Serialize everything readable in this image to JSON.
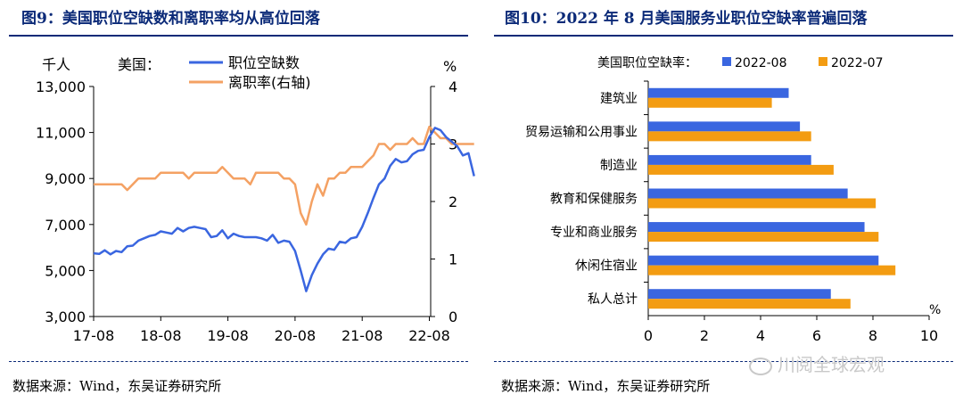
{
  "left": {
    "title": "图9：美国职位空缺数和离职率均从高位回落",
    "source": "数据来源：Wind，东吴证券研究所",
    "colors": {
      "openings": "#3a66e0",
      "quit_rate": "#f4a163"
    },
    "chart_data": {
      "type": "line",
      "title": "美国：",
      "y_unit_left": "千人",
      "y_unit_right": "%",
      "ylim_left": [
        3000,
        13000
      ],
      "ylim_right": [
        0,
        4
      ],
      "yticks_left": [
        "3,000",
        "5,000",
        "7,000",
        "9,000",
        "11,000",
        "13,000"
      ],
      "yticks_right": [
        "0",
        "1",
        "2",
        "3",
        "4"
      ],
      "xticks": [
        "17-08",
        "18-08",
        "19-08",
        "20-08",
        "21-08",
        "22-08"
      ],
      "series": [
        {
          "name": "职位空缺数",
          "axis": "left",
          "start": "2017-08",
          "values": [
            5750,
            5720,
            5880,
            5700,
            5850,
            5800,
            6050,
            6080,
            6300,
            6400,
            6500,
            6550,
            6700,
            6650,
            6600,
            6850,
            6700,
            6850,
            6900,
            6850,
            6800,
            6450,
            6500,
            6750,
            6400,
            6600,
            6500,
            6450,
            6450,
            6450,
            6400,
            6300,
            6550,
            6200,
            6300,
            6250,
            5850,
            5000,
            4100,
            4800,
            5300,
            5700,
            5950,
            5900,
            6250,
            6200,
            6400,
            6450,
            6900,
            7500,
            8150,
            8750,
            9000,
            9550,
            9850,
            9700,
            9750,
            10050,
            10200,
            10250,
            10800,
            11200,
            11100,
            10800,
            10600,
            10400,
            10000,
            10100,
            9100
          ]
        },
        {
          "name": "离职率(右轴)",
          "axis": "right",
          "start": "2017-08",
          "values": [
            2.3,
            2.3,
            2.3,
            2.3,
            2.3,
            2.3,
            2.2,
            2.3,
            2.4,
            2.4,
            2.4,
            2.4,
            2.5,
            2.5,
            2.5,
            2.5,
            2.5,
            2.4,
            2.5,
            2.5,
            2.5,
            2.5,
            2.5,
            2.6,
            2.5,
            2.4,
            2.4,
            2.4,
            2.3,
            2.5,
            2.5,
            2.5,
            2.5,
            2.5,
            2.4,
            2.4,
            2.3,
            1.8,
            1.6,
            2.0,
            2.3,
            2.1,
            2.4,
            2.4,
            2.5,
            2.5,
            2.6,
            2.6,
            2.6,
            2.7,
            2.8,
            3.0,
            3.0,
            2.9,
            3.0,
            3.0,
            3.0,
            3.1,
            3.0,
            3.0,
            3.3,
            3.2,
            3.1,
            3.1,
            3.0,
            3.0,
            3.0,
            3.0,
            3.0
          ]
        }
      ]
    }
  },
  "right": {
    "title": "图10：2022 年 8 月美国服务业职位空缺率普遍回落",
    "source": "数据来源：Wind，东吴证券研究所",
    "colors": {
      "s2022_08": "#3a66e0",
      "s2022_07": "#f39c12"
    },
    "chart_data": {
      "type": "bar",
      "orientation": "horizontal",
      "title": "美国职位空缺率：",
      "unit": "%",
      "xlim": [
        0,
        10
      ],
      "xticks": [
        "0",
        "2",
        "4",
        "6",
        "8",
        "10"
      ],
      "categories": [
        "建筑业",
        "贸易运输和公用事业",
        "制造业",
        "教育和保健服务",
        "专业和商业服务",
        "休闲住宿业",
        "私人总计"
      ],
      "series": [
        {
          "name": "2022-08",
          "values": [
            5.0,
            5.4,
            5.8,
            7.1,
            7.7,
            8.2,
            6.5
          ]
        },
        {
          "name": "2022-07",
          "values": [
            4.4,
            5.8,
            6.6,
            8.1,
            8.2,
            8.8,
            7.2
          ]
        }
      ]
    }
  },
  "watermark": "川阅全球宏观"
}
